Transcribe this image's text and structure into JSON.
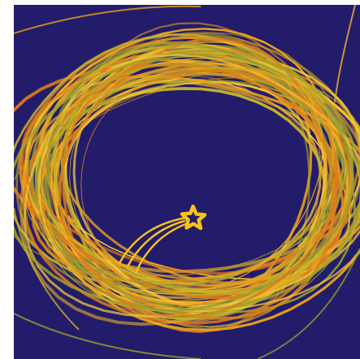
{
  "image": {
    "subject": "star-with-swirling-trail",
    "colors": {
      "background": "#231c6b",
      "page_edge": "#ffffff",
      "star": "#f4c21a",
      "trail_palette": [
        "#e9a21d",
        "#f0b326",
        "#d9831b",
        "#a3a12a",
        "#c4b22c",
        "#f2c83a",
        "#8e9a34",
        "#e07a1a"
      ]
    }
  }
}
